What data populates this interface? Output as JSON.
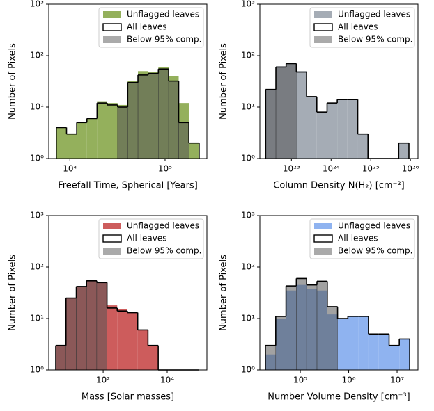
{
  "chart_data": [
    {
      "type": "histogram",
      "xlabel": "Freefall Time, Spherical [Years]",
      "ylabel": "Number of Pixels",
      "xscale": "log",
      "yscale": "log",
      "legend": "upper right",
      "bins": [
        7200,
        9220,
        11800,
        15100,
        19300,
        24700,
        31700,
        40500,
        51900,
        66400,
        85000,
        109000,
        139000,
        178000,
        228000
      ],
      "series": [
        {
          "name": "Unflagged leaves",
          "color": "#94b05c",
          "values": [
            4,
            3,
            5,
            6,
            13,
            12,
            11,
            32,
            50,
            48,
            60,
            40,
            12,
            2
          ]
        },
        {
          "name": "All leaves",
          "color": "#000000",
          "values": [
            4,
            3,
            5,
            6,
            12,
            11,
            10,
            30,
            42,
            45,
            55,
            32,
            5,
            2
          ]
        },
        {
          "name": "Below 95% comp.",
          "color": "#555555",
          "values": [
            0,
            0,
            0,
            0,
            0,
            0,
            10,
            30,
            42,
            45,
            55,
            32,
            5,
            0
          ]
        }
      ],
      "xlim": [
        6000,
        275000
      ],
      "xticks": [
        {
          "value": 10000,
          "label": "10⁴"
        },
        {
          "value": 100000,
          "label": "10⁵"
        }
      ],
      "ylim": [
        1,
        1000
      ],
      "yticks": [
        {
          "value": 1,
          "label": "10⁰"
        },
        {
          "value": 10,
          "label": "10¹"
        },
        {
          "value": 100,
          "label": "10²"
        },
        {
          "value": 1000,
          "label": "10³"
        }
      ]
    },
    {
      "type": "histogram",
      "xlabel": "Column Density N(H₂) [cm⁻²]",
      "ylabel": "Number of Pixels",
      "xscale": "log",
      "yscale": "log",
      "legend": "upper right",
      "bins": [
        2.24e+22,
        4.06e+22,
        7.35e+22,
        1.33e+23,
        2.41e+23,
        4.37e+23,
        7.91e+23,
        1.43e+24,
        2.59e+24,
        4.7e+24,
        8.51e+24,
        1.54e+25,
        2.79e+25,
        5.06e+25,
        9.16e+25
      ],
      "series": [
        {
          "name": "Unflagged leaves",
          "color": "#a5acb5",
          "values": [
            22,
            62,
            70,
            50,
            16,
            8,
            12,
            14,
            14,
            3,
            0,
            0,
            0,
            2
          ]
        },
        {
          "name": "All leaves",
          "color": "#000000",
          "values": [
            22,
            60,
            70,
            48,
            16,
            8,
            12,
            14,
            14,
            3,
            0,
            0,
            0,
            2
          ]
        },
        {
          "name": "Below 95% comp.",
          "color": "#555555",
          "values": [
            22,
            60,
            70,
            0,
            0,
            0,
            0,
            0,
            0,
            0,
            0,
            0,
            0,
            0
          ]
        }
      ],
      "xlim": [
        1.6e+22,
        1.55e+26
      ],
      "xticks": [
        {
          "value": 1e+23,
          "label": "10²³"
        },
        {
          "value": 1e+24,
          "label": "10²⁴"
        },
        {
          "value": 1e+25,
          "label": "10²⁵"
        },
        {
          "value": 1e+26,
          "label": "10²⁶"
        }
      ],
      "ylim": [
        1,
        1000
      ],
      "yticks": [
        {
          "value": 1,
          "label": "10⁰"
        },
        {
          "value": 10,
          "label": "10¹"
        },
        {
          "value": 100,
          "label": "10²"
        },
        {
          "value": 1000,
          "label": "10³"
        }
      ]
    },
    {
      "type": "histogram",
      "xlabel": "Mass [Solar masses]",
      "ylabel": "Number of Pixels",
      "xscale": "log",
      "yscale": "log",
      "legend": "upper right",
      "bins": [
        3.3,
        6.9,
        14.5,
        30.2,
        63.1,
        132,
        275,
        575,
        1200,
        2510,
        5250,
        11000,
        22900,
        47900,
        100000
      ],
      "series": [
        {
          "name": "Unflagged leaves",
          "color": "#cd5c5c",
          "values": [
            3,
            25,
            42,
            56,
            52,
            18,
            15,
            13,
            6,
            3,
            0,
            0,
            0,
            1
          ]
        },
        {
          "name": "All leaves",
          "color": "#000000",
          "values": [
            3,
            25,
            42,
            54,
            50,
            16,
            14,
            13,
            6,
            3,
            0,
            0,
            0,
            1
          ]
        },
        {
          "name": "Below 95% comp.",
          "color": "#555555",
          "values": [
            3,
            25,
            42,
            54,
            50,
            0,
            0,
            0,
            0,
            0,
            0,
            0,
            0,
            0
          ]
        }
      ],
      "xlim": [
        2,
        174000
      ],
      "xticks": [
        {
          "value": 100,
          "label": "10²"
        },
        {
          "value": 10000,
          "label": "10⁴"
        }
      ],
      "ylim": [
        1,
        1000
      ],
      "yticks": [
        {
          "value": 1,
          "label": "10⁰"
        },
        {
          "value": 10,
          "label": "10¹"
        },
        {
          "value": 100,
          "label": "10²"
        },
        {
          "value": 1000,
          "label": "10³"
        }
      ]
    },
    {
      "type": "histogram",
      "xlabel": "Number Volume Density [cm⁻³]",
      "ylabel": "Number of Pixels",
      "xscale": "log",
      "yscale": "log",
      "legend": "upper right",
      "bins": [
        19000,
        31100,
        50700,
        82800,
        135000,
        221000,
        361000,
        589000,
        962000,
        1570000,
        2560000,
        4180000,
        6830000,
        11100000,
        18200000
      ],
      "series": [
        {
          "name": "Unflagged leaves",
          "color": "#8fb3f0",
          "values": [
            2,
            10,
            35,
            45,
            38,
            35,
            12,
            10,
            11,
            11,
            5,
            5,
            3,
            4
          ]
        },
        {
          "name": "All leaves",
          "color": "#000000",
          "values": [
            3,
            11,
            43,
            60,
            45,
            53,
            17,
            10,
            11,
            11,
            5,
            5,
            3,
            4
          ]
        },
        {
          "name": "Below 95% comp.",
          "color": "#555555",
          "values": [
            3,
            11,
            43,
            60,
            45,
            53,
            17,
            0,
            0,
            0,
            0,
            0,
            0,
            0
          ]
        }
      ],
      "xlim": [
        14600,
        27000000
      ],
      "xticks": [
        {
          "value": 100000,
          "label": "10⁵"
        },
        {
          "value": 1000000,
          "label": "10⁶"
        },
        {
          "value": 10000000,
          "label": "10⁷"
        }
      ],
      "ylim": [
        1,
        1000
      ],
      "yticks": [
        {
          "value": 1,
          "label": "10⁰"
        },
        {
          "value": 10,
          "label": "10¹"
        },
        {
          "value": 100,
          "label": "10²"
        },
        {
          "value": 1000,
          "label": "10³"
        }
      ]
    }
  ]
}
